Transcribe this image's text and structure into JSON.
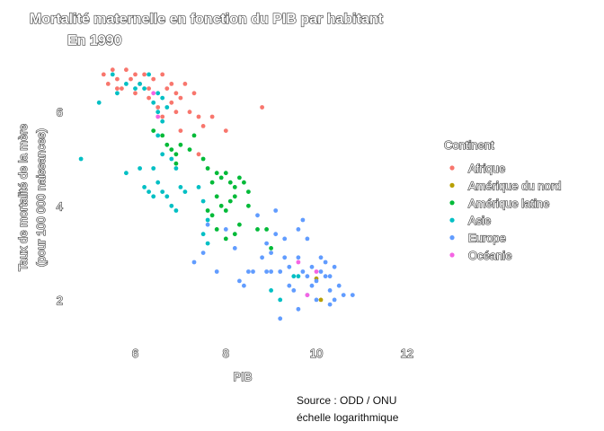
{
  "chart_data": {
    "type": "scatter",
    "title": "Mortalité maternelle en fonction du PIB par habitant",
    "subtitle": "En 1990",
    "xlabel": "PIB",
    "ylabel_line1": "Taux de mortalité de la mère",
    "ylabel_line2": "(pour 100 000 naissances)",
    "xlim": [
      4.6,
      12.7
    ],
    "ylim": [
      1.5,
      7.2
    ],
    "xticks": [
      "6",
      "8",
      "10",
      "12"
    ],
    "yticks": [
      "2",
      "4",
      "6"
    ],
    "grid": false,
    "legend_title": "Continent",
    "legend_position": "right",
    "caption_line1": "Source : ODD / ONU",
    "caption_line2": "échelle logarithmique",
    "series": [
      {
        "name": "Afrique",
        "color": "#F8766D",
        "points": [
          [
            5.3,
            6.8
          ],
          [
            5.5,
            6.9
          ],
          [
            5.4,
            6.6
          ],
          [
            5.6,
            6.7
          ],
          [
            5.8,
            6.9
          ],
          [
            5.7,
            6.5
          ],
          [
            5.9,
            6.7
          ],
          [
            6.0,
            6.8
          ],
          [
            6.1,
            6.6
          ],
          [
            6.2,
            6.8
          ],
          [
            6.3,
            6.5
          ],
          [
            6.4,
            6.7
          ],
          [
            5.6,
            6.5
          ],
          [
            6.0,
            6.4
          ],
          [
            6.3,
            6.3
          ],
          [
            6.6,
            6.8
          ],
          [
            6.7,
            6.5
          ],
          [
            6.8,
            6.6
          ],
          [
            6.9,
            6.4
          ],
          [
            7.0,
            6.3
          ],
          [
            7.1,
            6.6
          ],
          [
            6.5,
            6.1
          ],
          [
            6.8,
            6.2
          ],
          [
            6.9,
            6.0
          ],
          [
            7.2,
            6.0
          ],
          [
            7.4,
            5.9
          ],
          [
            7.3,
            6.4
          ],
          [
            7.5,
            5.7
          ],
          [
            7.7,
            5.9
          ],
          [
            8.0,
            5.6
          ],
          [
            6.6,
            5.9
          ],
          [
            7.0,
            5.6
          ],
          [
            7.4,
            5.1
          ],
          [
            8.8,
            6.1
          ]
        ]
      },
      {
        "name": "Amérique du nord",
        "color": "#B79F00",
        "points": [
          [
            10.0,
            2.45
          ],
          [
            10.1,
            2.0
          ]
        ]
      },
      {
        "name": "Amérique latine",
        "color": "#00BA38",
        "points": [
          [
            6.4,
            5.6
          ],
          [
            6.6,
            5.5
          ],
          [
            6.7,
            5.3
          ],
          [
            6.8,
            5.2
          ],
          [
            6.9,
            5.1
          ],
          [
            7.0,
            5.3
          ],
          [
            7.2,
            5.2
          ],
          [
            7.3,
            5.5
          ],
          [
            6.9,
            4.9
          ],
          [
            7.5,
            5.0
          ],
          [
            7.6,
            4.8
          ],
          [
            7.8,
            4.7
          ],
          [
            7.9,
            4.6
          ],
          [
            8.0,
            4.7
          ],
          [
            8.1,
            4.5
          ],
          [
            8.2,
            4.4
          ],
          [
            8.3,
            4.6
          ],
          [
            8.4,
            4.5
          ],
          [
            8.5,
            4.3
          ],
          [
            7.7,
            4.5
          ],
          [
            7.8,
            4.2
          ],
          [
            7.9,
            4.0
          ],
          [
            8.0,
            3.9
          ],
          [
            8.1,
            4.1
          ],
          [
            8.2,
            4.2
          ],
          [
            7.6,
            3.9
          ],
          [
            7.7,
            3.8
          ],
          [
            7.8,
            3.5
          ],
          [
            8.0,
            3.3
          ],
          [
            8.2,
            3.4
          ],
          [
            8.3,
            3.6
          ],
          [
            8.5,
            4.0
          ],
          [
            8.7,
            3.5
          ],
          [
            9.0,
            3.1
          ],
          [
            8.9,
            3.5
          ]
        ]
      },
      {
        "name": "Asie",
        "color": "#00BFC4",
        "points": [
          [
            4.8,
            5.0
          ],
          [
            5.2,
            6.2
          ],
          [
            5.5,
            6.8
          ],
          [
            5.6,
            6.4
          ],
          [
            5.8,
            6.6
          ],
          [
            6.0,
            6.5
          ],
          [
            6.1,
            6.6
          ],
          [
            6.3,
            6.8
          ],
          [
            6.2,
            6.5
          ],
          [
            6.5,
            6.4
          ],
          [
            6.6,
            6.3
          ],
          [
            6.4,
            6.2
          ],
          [
            6.6,
            5.8
          ],
          [
            6.5,
            5.5
          ],
          [
            6.6,
            5.1
          ],
          [
            6.8,
            5.0
          ],
          [
            6.9,
            4.8
          ],
          [
            6.4,
            4.8
          ],
          [
            6.5,
            4.5
          ],
          [
            6.3,
            4.3
          ],
          [
            6.4,
            4.2
          ],
          [
            6.6,
            4.3
          ],
          [
            6.7,
            4.2
          ],
          [
            6.8,
            4.0
          ],
          [
            6.9,
            3.9
          ],
          [
            7.0,
            4.4
          ],
          [
            7.1,
            4.3
          ],
          [
            7.4,
            4.4
          ],
          [
            7.5,
            4.1
          ],
          [
            7.6,
            3.7
          ],
          [
            7.5,
            3.4
          ],
          [
            7.6,
            3.2
          ],
          [
            5.8,
            4.7
          ],
          [
            6.1,
            4.8
          ],
          [
            6.2,
            4.4
          ],
          [
            6.5,
            6.0
          ],
          [
            6.7,
            6.1
          ],
          [
            9.2,
            2.0
          ],
          [
            9.6,
            2.5
          ],
          [
            9.5,
            2.5
          ],
          [
            9.0,
            2.2
          ]
        ]
      },
      {
        "name": "Europe",
        "color": "#619CFF",
        "points": [
          [
            7.3,
            2.8
          ],
          [
            7.5,
            3.0
          ],
          [
            7.8,
            2.6
          ],
          [
            8.0,
            3.5
          ],
          [
            8.2,
            3.1
          ],
          [
            8.3,
            2.4
          ],
          [
            8.4,
            2.3
          ],
          [
            8.5,
            2.6
          ],
          [
            8.6,
            2.6
          ],
          [
            8.8,
            2.9
          ],
          [
            8.9,
            2.6
          ],
          [
            9.0,
            3.0
          ],
          [
            9.1,
            3.4
          ],
          [
            9.2,
            2.6
          ],
          [
            9.3,
            2.9
          ],
          [
            9.4,
            2.3
          ],
          [
            9.5,
            2.2
          ],
          [
            9.6,
            2.9
          ],
          [
            9.7,
            2.6
          ],
          [
            9.8,
            2.5
          ],
          [
            9.9,
            2.3
          ],
          [
            10.0,
            2.4
          ],
          [
            10.1,
            2.6
          ],
          [
            10.2,
            2.5
          ],
          [
            10.3,
            2.2
          ],
          [
            10.4,
            2.0
          ],
          [
            10.5,
            2.3
          ],
          [
            10.6,
            2.1
          ],
          [
            9.2,
            1.6
          ],
          [
            9.6,
            1.8
          ],
          [
            9.8,
            2.1
          ],
          [
            10.2,
            2.8
          ],
          [
            10.0,
            2.0
          ],
          [
            10.3,
            1.9
          ],
          [
            10.8,
            2.1
          ],
          [
            9.0,
            2.6
          ],
          [
            8.7,
            3.8
          ],
          [
            8.9,
            3.2
          ],
          [
            9.1,
            3.9
          ],
          [
            9.3,
            3.3
          ],
          [
            9.6,
            3.5
          ],
          [
            9.7,
            3.7
          ],
          [
            9.8,
            3.3
          ],
          [
            10.1,
            2.9
          ],
          [
            10.4,
            2.7
          ],
          [
            7.6,
            3.6
          ],
          [
            9.4,
            2.7
          ],
          [
            9.9,
            2.7
          ],
          [
            10.3,
            2.5
          ]
        ]
      },
      {
        "name": "Océanie",
        "color": "#F564E3",
        "points": [
          [
            6.4,
            6.4
          ],
          [
            6.5,
            5.9
          ],
          [
            9.6,
            2.8
          ],
          [
            9.8,
            2.1
          ],
          [
            10.0,
            2.6
          ]
        ]
      }
    ]
  }
}
